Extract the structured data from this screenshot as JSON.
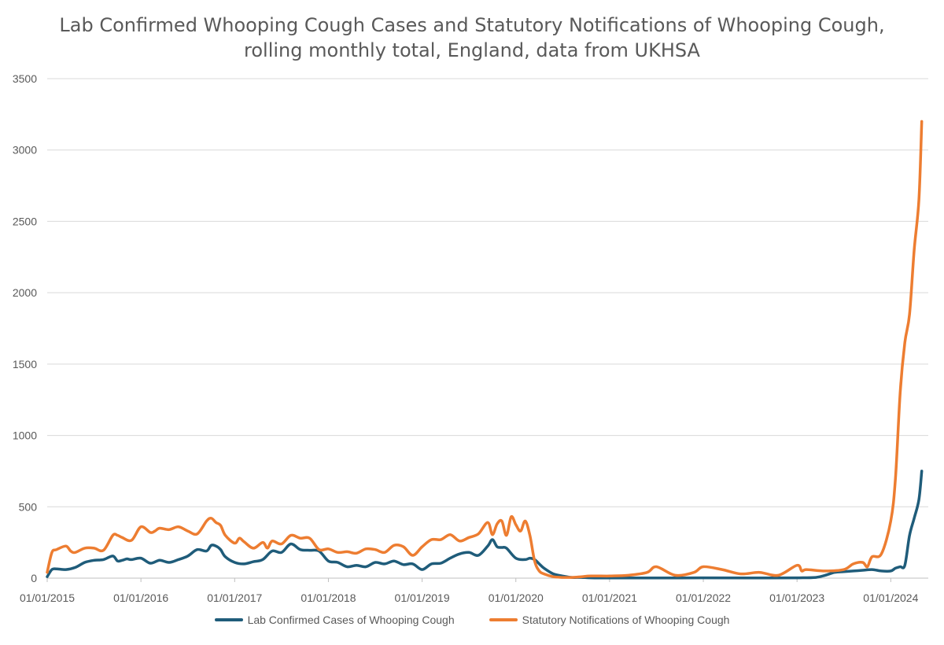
{
  "chart_data": {
    "type": "line",
    "title_line1": "Lab Confirmed Whooping Cough Cases and Statutory Notifications of Whooping Cough,",
    "title_line2": "rolling monthly total, England, data from UKHSA",
    "xlabel": "",
    "ylabel": "",
    "ylim": [
      0,
      3500
    ],
    "yticks": [
      0,
      500,
      1000,
      1500,
      2000,
      2500,
      3000,
      3500
    ],
    "xlim": [
      2015.0,
      2024.4
    ],
    "xticks": [
      {
        "x": 2015,
        "label": "01/01/2015"
      },
      {
        "x": 2016,
        "label": "01/01/2016"
      },
      {
        "x": 2017,
        "label": "01/01/2017"
      },
      {
        "x": 2018,
        "label": "01/01/2018"
      },
      {
        "x": 2019,
        "label": "01/01/2019"
      },
      {
        "x": 2020,
        "label": "01/01/2020"
      },
      {
        "x": 2021,
        "label": "01/01/2021"
      },
      {
        "x": 2022,
        "label": "01/01/2022"
      },
      {
        "x": 2023,
        "label": "01/01/2023"
      },
      {
        "x": 2024,
        "label": "01/01/2024"
      }
    ],
    "grid": "horizontal",
    "legend": "bottom",
    "series": [
      {
        "name": "Lab Confirmed Cases of Whooping Cough",
        "color": "#1F5C7A",
        "x": [
          2015.0,
          2015.05,
          2015.1,
          2015.2,
          2015.3,
          2015.4,
          2015.5,
          2015.6,
          2015.7,
          2015.75,
          2015.8,
          2015.85,
          2015.9,
          2016.0,
          2016.1,
          2016.2,
          2016.3,
          2016.4,
          2016.5,
          2016.6,
          2016.7,
          2016.75,
          2016.8,
          2016.85,
          2016.9,
          2017.0,
          2017.1,
          2017.2,
          2017.3,
          2017.4,
          2017.5,
          2017.6,
          2017.7,
          2017.8,
          2017.9,
          2018.0,
          2018.1,
          2018.2,
          2018.3,
          2018.4,
          2018.5,
          2018.6,
          2018.7,
          2018.8,
          2018.9,
          2019.0,
          2019.1,
          2019.2,
          2019.3,
          2019.4,
          2019.5,
          2019.6,
          2019.7,
          2019.75,
          2019.8,
          2019.85,
          2019.9,
          2020.0,
          2020.1,
          2020.15,
          2020.2,
          2020.25,
          2020.3,
          2020.4,
          2020.5,
          2020.6,
          2020.7,
          2020.8,
          2021.0,
          2021.5,
          2022.0,
          2022.5,
          2023.0,
          2023.2,
          2023.3,
          2023.4,
          2023.5,
          2023.6,
          2023.7,
          2023.8,
          2023.9,
          2024.0,
          2024.05,
          2024.1,
          2024.15,
          2024.2,
          2024.25,
          2024.3,
          2024.33
        ],
        "y": [
          10,
          60,
          65,
          60,
          75,
          110,
          125,
          130,
          155,
          120,
          125,
          135,
          130,
          140,
          105,
          125,
          110,
          130,
          155,
          200,
          190,
          230,
          225,
          200,
          150,
          110,
          100,
          115,
          130,
          190,
          180,
          240,
          200,
          195,
          190,
          120,
          110,
          80,
          90,
          80,
          110,
          100,
          120,
          95,
          100,
          60,
          100,
          105,
          140,
          170,
          180,
          160,
          225,
          270,
          220,
          215,
          210,
          140,
          130,
          140,
          130,
          100,
          70,
          30,
          15,
          5,
          5,
          2,
          1,
          1,
          2,
          1,
          2,
          5,
          20,
          40,
          45,
          50,
          55,
          60,
          50,
          50,
          70,
          80,
          90,
          300,
          420,
          550,
          750
        ]
      },
      {
        "name": "Statutory Notifications of Whooping Cough",
        "color": "#ED7D31",
        "x": [
          2015.0,
          2015.05,
          2015.1,
          2015.2,
          2015.25,
          2015.3,
          2015.4,
          2015.5,
          2015.6,
          2015.7,
          2015.75,
          2015.8,
          2015.9,
          2016.0,
          2016.1,
          2016.15,
          2016.2,
          2016.3,
          2016.4,
          2016.5,
          2016.6,
          2016.7,
          2016.75,
          2016.8,
          2016.85,
          2016.9,
          2017.0,
          2017.05,
          2017.1,
          2017.2,
          2017.3,
          2017.35,
          2017.4,
          2017.5,
          2017.6,
          2017.7,
          2017.8,
          2017.9,
          2018.0,
          2018.1,
          2018.2,
          2018.3,
          2018.4,
          2018.5,
          2018.6,
          2018.7,
          2018.8,
          2018.9,
          2019.0,
          2019.1,
          2019.2,
          2019.3,
          2019.4,
          2019.5,
          2019.6,
          2019.7,
          2019.75,
          2019.8,
          2019.85,
          2019.9,
          2019.95,
          2020.0,
          2020.05,
          2020.1,
          2020.15,
          2020.2,
          2020.25,
          2020.3,
          2020.4,
          2020.5,
          2020.6,
          2020.7,
          2020.8,
          2021.0,
          2021.2,
          2021.4,
          2021.5,
          2021.7,
          2021.9,
          2022.0,
          2022.2,
          2022.4,
          2022.6,
          2022.8,
          2023.0,
          2023.05,
          2023.1,
          2023.3,
          2023.5,
          2023.6,
          2023.7,
          2023.75,
          2023.8,
          2023.9,
          2024.0,
          2024.05,
          2024.1,
          2024.15,
          2024.2,
          2024.25,
          2024.3,
          2024.33
        ],
        "y": [
          40,
          180,
          200,
          225,
          190,
          180,
          210,
          210,
          195,
          300,
          300,
          285,
          265,
          360,
          320,
          330,
          350,
          340,
          360,
          330,
          310,
          400,
          420,
          390,
          370,
          300,
          245,
          280,
          255,
          210,
          250,
          210,
          260,
          240,
          300,
          280,
          280,
          200,
          205,
          180,
          185,
          175,
          205,
          200,
          180,
          230,
          220,
          160,
          220,
          270,
          270,
          305,
          260,
          285,
          310,
          390,
          305,
          380,
          400,
          300,
          430,
          375,
          330,
          400,
          300,
          120,
          50,
          30,
          10,
          5,
          5,
          10,
          15,
          15,
          20,
          40,
          80,
          20,
          40,
          80,
          60,
          30,
          40,
          20,
          90,
          50,
          60,
          50,
          60,
          100,
          110,
          80,
          150,
          170,
          400,
          700,
          1300,
          1650,
          1850,
          2300,
          2650,
          3200
        ]
      }
    ]
  }
}
